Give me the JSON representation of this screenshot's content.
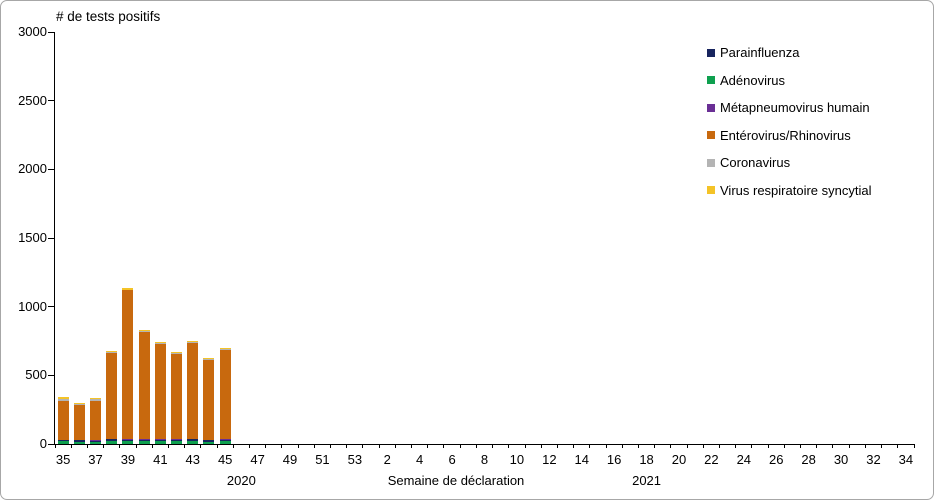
{
  "chart_data": {
    "type": "stacked-bar",
    "title": "# de tests positifs",
    "xlabel": "Semaine de déclaration",
    "ylim": [
      0,
      3000
    ],
    "ytick_step": 500,
    "ytick_labels": [
      "0",
      "500",
      "1000",
      "1500",
      "2000",
      "2500",
      "3000"
    ],
    "grid": false,
    "legend_position": "top-right",
    "categories": [
      "35",
      "36",
      "37",
      "38",
      "39",
      "40",
      "41",
      "42",
      "43",
      "44",
      "45",
      "46",
      "47",
      "48",
      "49",
      "50",
      "51",
      "52",
      "53",
      "1",
      "2",
      "3",
      "4",
      "5",
      "6",
      "7",
      "8",
      "9",
      "10",
      "11",
      "12",
      "13",
      "14",
      "15",
      "16",
      "17",
      "18",
      "19",
      "20",
      "21",
      "22",
      "23",
      "24",
      "25",
      "26",
      "27",
      "28",
      "29",
      "30",
      "31",
      "32",
      "33",
      "34"
    ],
    "xtick_labels": [
      "35",
      "",
      "37",
      "",
      "39",
      "",
      "41",
      "",
      "43",
      "",
      "45",
      "",
      "47",
      "",
      "49",
      "",
      "51",
      "",
      "53",
      "",
      "2",
      "",
      "4",
      "",
      "6",
      "",
      "8",
      "",
      "10",
      "",
      "12",
      "",
      "14",
      "",
      "16",
      "",
      "18",
      "",
      "20",
      "",
      "22",
      "",
      "24",
      "",
      "26",
      "",
      "28",
      "",
      "30",
      "",
      "32",
      "",
      "34"
    ],
    "year_labels": [
      {
        "text": "2020",
        "slot_index": 11
      },
      {
        "text": "2021",
        "slot_index": 36
      }
    ],
    "stack_order_bottom_to_top": [
      "Adénovirus",
      "Parainfluenza",
      "Métapneumovirus humain",
      "Entérovirus/Rhinovirus",
      "Coronavirus",
      "Virus respiratoire syncytial"
    ],
    "series": [
      {
        "name": "Parainfluenza",
        "color": "#17245e",
        "values": [
          8,
          12,
          6,
          8,
          8,
          10,
          12,
          10,
          8,
          8,
          8,
          0,
          0,
          0,
          0,
          0,
          0,
          0,
          0,
          0,
          0,
          0,
          0,
          0,
          0,
          0,
          0,
          0,
          0,
          0,
          0,
          0,
          0,
          0,
          0,
          0,
          0,
          0,
          0,
          0,
          0,
          0,
          0,
          0,
          0,
          0,
          0,
          0,
          0,
          0,
          0,
          0,
          0
        ]
      },
      {
        "name": "Adénovirus",
        "color": "#0ea04f",
        "values": [
          20,
          15,
          18,
          25,
          20,
          22,
          20,
          22,
          25,
          18,
          22,
          0,
          0,
          0,
          0,
          0,
          0,
          0,
          0,
          0,
          0,
          0,
          0,
          0,
          0,
          0,
          0,
          0,
          0,
          0,
          0,
          0,
          0,
          0,
          0,
          0,
          0,
          0,
          0,
          0,
          0,
          0,
          0,
          0,
          0,
          0,
          0,
          0,
          0,
          0,
          0,
          0,
          0
        ]
      },
      {
        "name": "Métapneumovirus humain",
        "color": "#6a2f95",
        "values": [
          3,
          2,
          6,
          3,
          6,
          4,
          4,
          5,
          4,
          6,
          3,
          0,
          0,
          0,
          0,
          0,
          0,
          0,
          0,
          0,
          0,
          0,
          0,
          0,
          0,
          0,
          0,
          0,
          0,
          0,
          0,
          0,
          0,
          0,
          0,
          0,
          0,
          0,
          0,
          0,
          0,
          0,
          0,
          0,
          0,
          0,
          0,
          0,
          0,
          0,
          0,
          0,
          0
        ]
      },
      {
        "name": "Entérovirus/Rhinovirus",
        "color": "#c8690e",
        "values": [
          285,
          255,
          285,
          630,
          1085,
          780,
          695,
          622,
          700,
          580,
          652,
          0,
          0,
          0,
          0,
          0,
          0,
          0,
          0,
          0,
          0,
          0,
          0,
          0,
          0,
          0,
          0,
          0,
          0,
          0,
          0,
          0,
          0,
          0,
          0,
          0,
          0,
          0,
          0,
          0,
          0,
          0,
          0,
          0,
          0,
          0,
          0,
          0,
          0,
          0,
          0,
          0,
          0
        ]
      },
      {
        "name": "Coronavirus",
        "color": "#b4b4b4",
        "values": [
          15,
          8,
          12,
          6,
          6,
          6,
          5,
          6,
          6,
          6,
          5,
          0,
          0,
          0,
          0,
          0,
          0,
          0,
          0,
          0,
          0,
          0,
          0,
          0,
          0,
          0,
          0,
          0,
          0,
          0,
          0,
          0,
          0,
          0,
          0,
          0,
          0,
          0,
          0,
          0,
          0,
          0,
          0,
          0,
          0,
          0,
          0,
          0,
          0,
          0,
          0,
          0,
          0
        ]
      },
      {
        "name": "Virus respiratoire syncytial",
        "color": "#f4c327",
        "values": [
          10,
          8,
          10,
          6,
          8,
          7,
          6,
          7,
          7,
          6,
          7,
          0,
          0,
          0,
          0,
          0,
          0,
          0,
          0,
          0,
          0,
          0,
          0,
          0,
          0,
          0,
          0,
          0,
          0,
          0,
          0,
          0,
          0,
          0,
          0,
          0,
          0,
          0,
          0,
          0,
          0,
          0,
          0,
          0,
          0,
          0,
          0,
          0,
          0,
          0,
          0,
          0,
          0
        ]
      }
    ]
  }
}
